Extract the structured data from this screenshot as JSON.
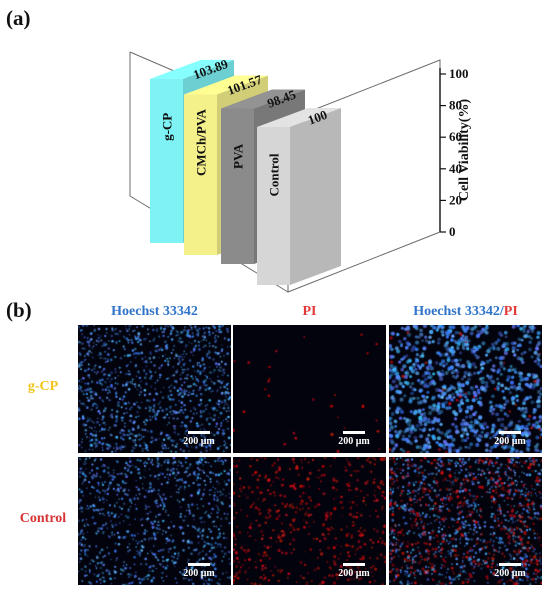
{
  "panel_a_label": "(a)",
  "panel_b_label": "(b)",
  "chart_data": {
    "type": "bar",
    "categories": [
      "g-CP",
      "CMCh/PVA",
      "PVA",
      "Control"
    ],
    "values": [
      103.89,
      101.57,
      98.45,
      100
    ],
    "value_labels": [
      "103.89",
      "101.57",
      "98.45",
      "100"
    ],
    "ylabel": "Cell Viability(%)",
    "ylim": [
      0,
      100
    ],
    "yticks": [
      "0",
      "20",
      "40",
      "60",
      "80",
      "100"
    ],
    "colors": [
      "#7ef2f4",
      "#f4f08a",
      "#8b8b8b",
      "#d6d6d6"
    ]
  },
  "micrographs": {
    "columns": [
      {
        "parts": [
          {
            "text": "Hoechst 33342",
            "color": "#2f74c9"
          }
        ]
      },
      {
        "parts": [
          {
            "text": "PI",
            "color": "#e23a3a"
          }
        ]
      },
      {
        "parts": [
          {
            "text": "Hoechst 33342",
            "color": "#2f74c9"
          },
          {
            "text": "/",
            "color": "#2f74c9"
          },
          {
            "text": "PI",
            "color": "#e23a3a"
          }
        ]
      }
    ],
    "rows": [
      {
        "label": "g-CP",
        "color": "#f0c419"
      },
      {
        "label": "Control",
        "color": "#d53535"
      }
    ],
    "scale_bar": "200 μm"
  }
}
